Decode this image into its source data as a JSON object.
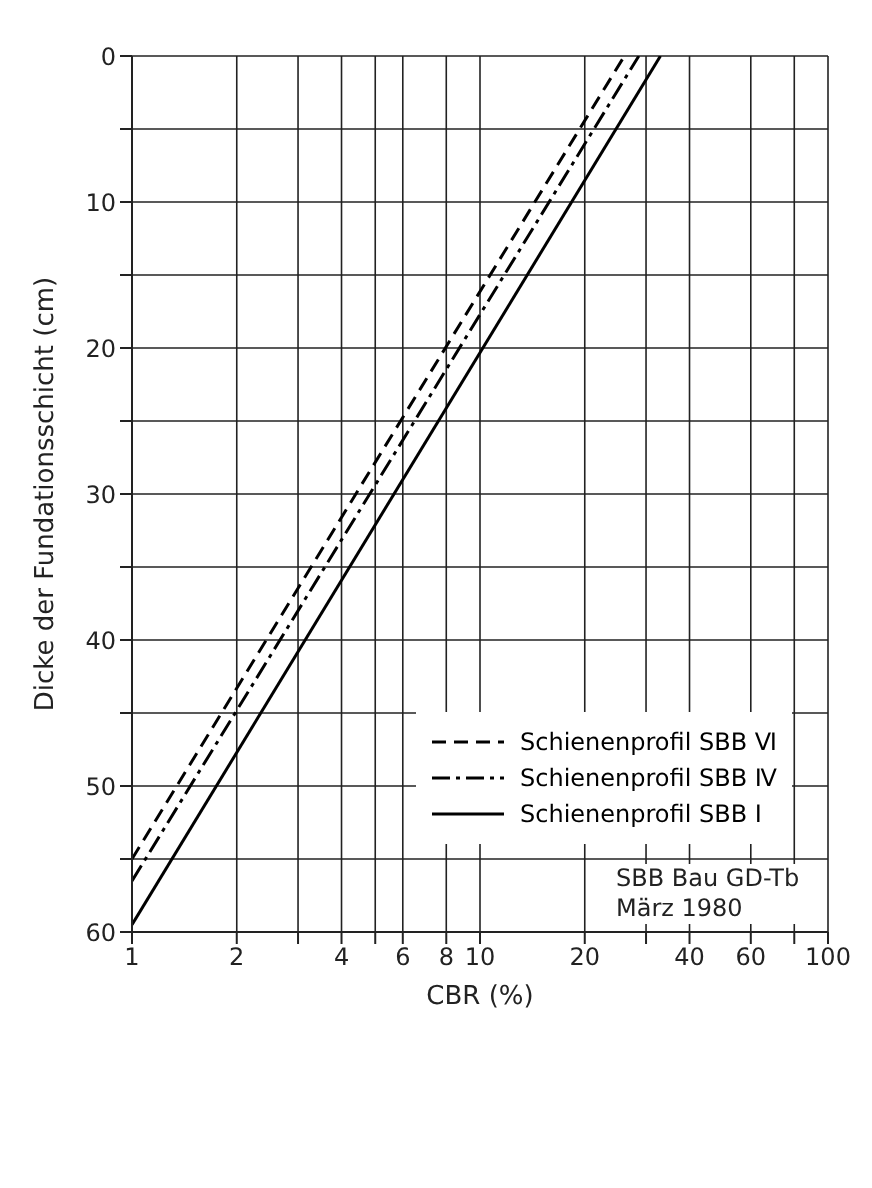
{
  "chart_data": {
    "type": "line",
    "xlabel": "CBR (%)",
    "ylabel": "Dicke der Fundationsschicht  (cm)",
    "log": "x",
    "xlim": [
      1,
      100
    ],
    "ylim": [
      60,
      0
    ],
    "xticks": [
      1,
      2,
      {
        "value": 3,
        "label": null
      },
      4,
      {
        "value": 5,
        "label": null
      },
      6,
      8,
      10,
      20,
      {
        "value": 30,
        "label": null
      },
      40,
      60,
      {
        "value": 80,
        "label": null
      },
      100
    ],
    "yticks": [
      0,
      {
        "value": 5,
        "label": null
      },
      10,
      {
        "value": 15,
        "label": null
      },
      20,
      {
        "value": 25,
        "label": null
      },
      30,
      {
        "value": 35,
        "label": null
      },
      40,
      {
        "value": 45,
        "label": null
      },
      50,
      {
        "value": 55,
        "label": null
      },
      60
    ],
    "grid": true,
    "legend": "bottom right",
    "marker": "none",
    "series": [
      {
        "name": "Schienenprofil SBB Ⅵ",
        "color": "#000000",
        "line_style": "dashed",
        "x": [
          1,
          26
        ],
        "values": [
          55,
          0
        ]
      },
      {
        "name": "Schienenprofil SBB Ⅳ",
        "color": "#000000",
        "line_style": "dashdot",
        "x": [
          1,
          28.6
        ],
        "values": [
          56.5,
          0
        ]
      },
      {
        "name": "Schienenprofil SBB Ⅰ",
        "color": "#000000",
        "line_style": "solid",
        "x": [
          1,
          33
        ],
        "values": [
          59.5,
          0
        ]
      }
    ],
    "annotations": [
      "SBB Bau GD-Tb",
      "März 1980"
    ]
  }
}
